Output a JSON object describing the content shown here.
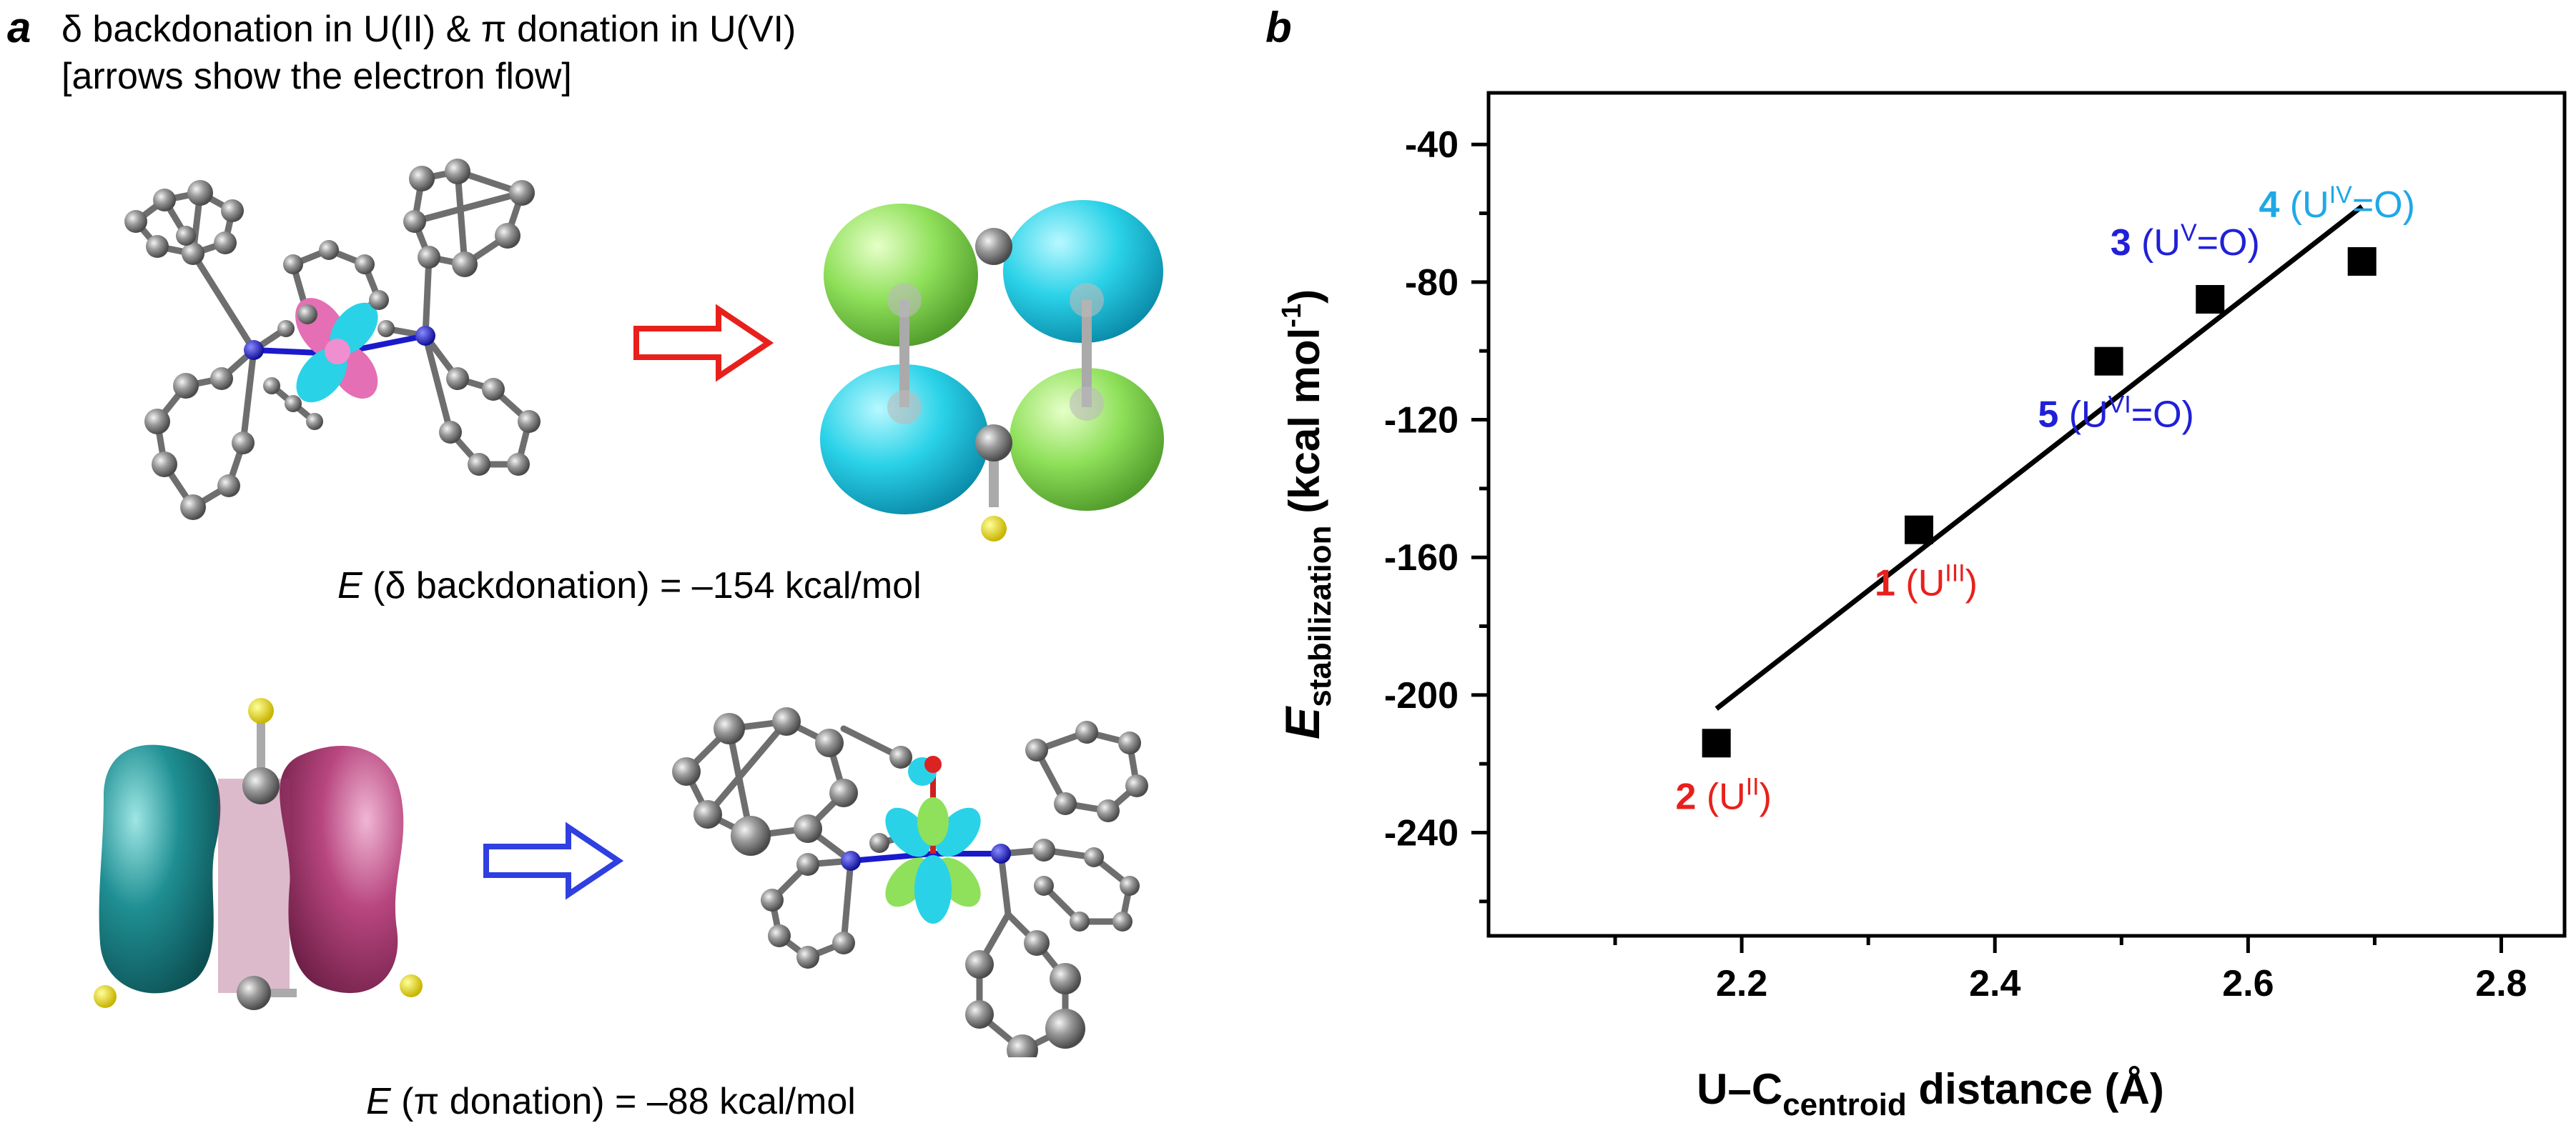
{
  "panel_a": {
    "letter": "a",
    "heading_line1": "δ backdonation in U(II) & π donation in U(VI)",
    "heading_line2": "[arrows show the electron flow]",
    "caption_top_E": "E",
    "caption_top_rest": " (δ backdonation) = –154 kcal/mol",
    "caption_bottom_E": "E",
    "caption_bottom_rest": " (π donation) = –88 kcal/mol",
    "arrow_top_color": "#e8201c",
    "arrow_bottom_color": "#2f3fe0",
    "orbital_colors": {
      "cyan": "#2ad2e8",
      "green": "#8fe05a",
      "teal": "#1f8f93",
      "magenta": "#b8467f",
      "pink": "#e46fb4",
      "atom_gray": "#8a8a8a",
      "nitrogen": "#1a1acc",
      "hydrogen_yellow": "#f0e000"
    }
  },
  "panel_b": {
    "letter": "b"
  },
  "chart_data": {
    "type": "scatter",
    "xlabel_main": "U–C",
    "xlabel_sub": "centroid",
    "xlabel_tail": " distance (Å)",
    "ylabel_main": "E",
    "ylabel_sub": "stabilization",
    "ylabel_tail": " (kcal mol",
    "ylabel_sup": "-1",
    "ylabel_close": ")",
    "xlim": [
      2.0,
      2.85
    ],
    "ylim": [
      -270,
      -25
    ],
    "x_ticks": [
      "2.2",
      "2.4",
      "2.6",
      "2.8"
    ],
    "x_tick_values": [
      2.2,
      2.4,
      2.6,
      2.8
    ],
    "y_ticks": [
      "-40",
      "-80",
      "-120",
      "-160",
      "-200",
      "-240"
    ],
    "y_tick_values": [
      -40,
      -80,
      -120,
      -160,
      -200,
      -240
    ],
    "grid": false,
    "points": [
      {
        "x": 2.18,
        "y": -214,
        "num": "2",
        "pre": " (U",
        "sup": "II",
        "post": ")",
        "color": "#e8201c",
        "label_pos": "below"
      },
      {
        "x": 2.34,
        "y": -152,
        "num": "1",
        "pre": " (U",
        "sup": "III",
        "post": ")",
        "color": "#e8201c",
        "label_pos": "below"
      },
      {
        "x": 2.49,
        "y": -103,
        "num": "5",
        "pre": " (U",
        "sup": "VI",
        "post": "=O)",
        "color": "#2020d8",
        "label_pos": "below"
      },
      {
        "x": 2.57,
        "y": -85,
        "num": "3",
        "pre": " (U",
        "sup": "V",
        "post": "=O)",
        "color": "#2020d8",
        "label_pos": "above"
      },
      {
        "x": 2.69,
        "y": -74,
        "num": "4",
        "pre": " (U",
        "sup": "IV",
        "post": "=O)",
        "color": "#1fa8e6",
        "label_pos": "above"
      }
    ],
    "fit_line": {
      "x": [
        2.18,
        2.69
      ],
      "y": [
        -204,
        -58
      ]
    }
  }
}
